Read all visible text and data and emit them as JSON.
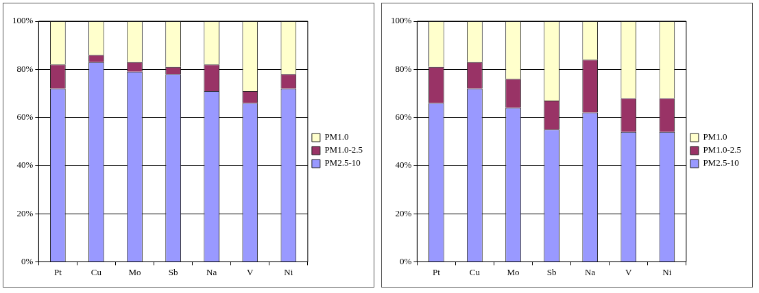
{
  "chart_data": [
    {
      "type": "bar",
      "stacked": true,
      "categories": [
        "Pt",
        "Cu",
        "Mo",
        "Sb",
        "Na",
        "V",
        "Ni"
      ],
      "series": [
        {
          "name": "PM2.5-10",
          "color": "#9999ff",
          "values": [
            72,
            83,
            79,
            78,
            71,
            66,
            72
          ]
        },
        {
          "name": "PM1.0-2.5",
          "color": "#993366",
          "values": [
            10,
            3,
            4,
            3,
            11,
            5,
            6
          ]
        },
        {
          "name": "PM1.0",
          "color": "#ffffcc",
          "values": [
            18,
            14,
            17,
            19,
            18,
            29,
            22
          ]
        }
      ],
      "ylim": [
        0,
        100
      ],
      "yticks": [
        {
          "value": 0,
          "label": "0%"
        },
        {
          "value": 20,
          "label": "20%"
        },
        {
          "value": 40,
          "label": "40%"
        },
        {
          "value": 60,
          "label": "60%"
        },
        {
          "value": 80,
          "label": "80%"
        },
        {
          "value": 100,
          "label": "100%"
        }
      ],
      "grid": "y",
      "legend": "right"
    },
    {
      "type": "bar",
      "stacked": true,
      "categories": [
        "Pt",
        "Cu",
        "Mo",
        "Sb",
        "Na",
        "V",
        "Ni"
      ],
      "series": [
        {
          "name": "PM2.5-10",
          "color": "#9999ff",
          "values": [
            66,
            72,
            64,
            55,
            62,
            54,
            54
          ]
        },
        {
          "name": "PM1.0-2.5",
          "color": "#993366",
          "values": [
            15,
            11,
            12,
            12,
            22,
            14,
            14
          ]
        },
        {
          "name": "PM1.0",
          "color": "#ffffcc",
          "values": [
            19,
            17,
            24,
            33,
            16,
            32,
            32
          ]
        }
      ],
      "ylim": [
        0,
        100
      ],
      "yticks": [
        {
          "value": 0,
          "label": "0%"
        },
        {
          "value": 20,
          "label": "20%"
        },
        {
          "value": 40,
          "label": "40%"
        },
        {
          "value": 60,
          "label": "60%"
        },
        {
          "value": 80,
          "label": "80%"
        },
        {
          "value": 100,
          "label": "100%"
        }
      ],
      "grid": "y",
      "legend": "right"
    }
  ]
}
